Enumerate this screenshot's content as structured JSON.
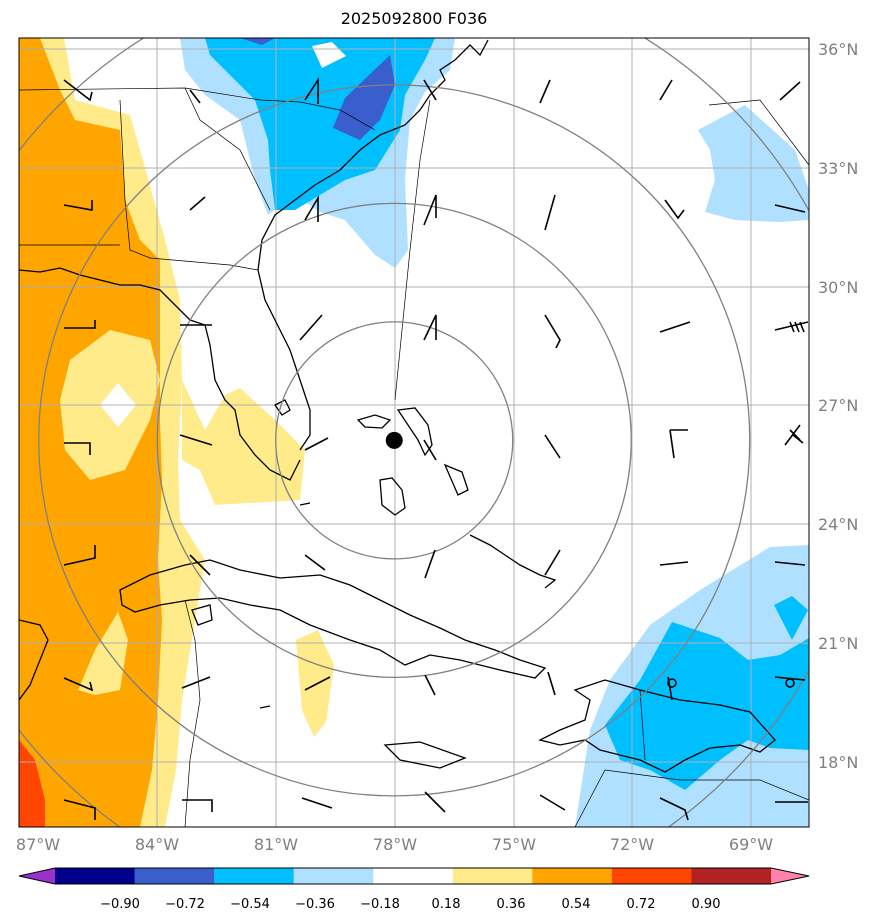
{
  "title": "2025092800 F036",
  "map": {
    "lon_range": [
      -87.0,
      -67.0
    ],
    "lat_range": [
      16.5,
      36.5
    ],
    "lon_ticks": [
      {
        "value": -87,
        "label": "87°W"
      },
      {
        "value": -84,
        "label": "84°W"
      },
      {
        "value": -81,
        "label": "81°W"
      },
      {
        "value": -78,
        "label": "78°W"
      },
      {
        "value": -75,
        "label": "75°W"
      },
      {
        "value": -72,
        "label": "72°W"
      },
      {
        "value": -69,
        "label": "69°W"
      }
    ],
    "lat_ticks": [
      {
        "value": 36,
        "label": "36°N"
      },
      {
        "value": 33,
        "label": "33°N"
      },
      {
        "value": 30,
        "label": "30°N"
      },
      {
        "value": 27,
        "label": "27°N"
      },
      {
        "value": 24,
        "label": "24°N"
      },
      {
        "value": 21,
        "label": "21°N"
      },
      {
        "value": 18,
        "label": "18°N"
      }
    ],
    "storm_center": {
      "lon": -77.5,
      "lat": 26.3
    },
    "range_ring_radii_deg": [
      3,
      6,
      9,
      12
    ],
    "grid": true
  },
  "colorbar": {
    "levels": [
      "−0.90",
      "−0.72",
      "−0.54",
      "−0.36",
      "−0.18",
      "0.18",
      "0.36",
      "0.54",
      "0.72",
      "0.90"
    ],
    "colors": [
      "#9932cc",
      "#00008b",
      "#3a5fcd",
      "#00bfff",
      "#b0e0ff",
      "#ffffff",
      "#ffeb8a",
      "#ffa500",
      "#ff4500",
      "#b22222",
      "#ff82ab"
    ]
  }
}
